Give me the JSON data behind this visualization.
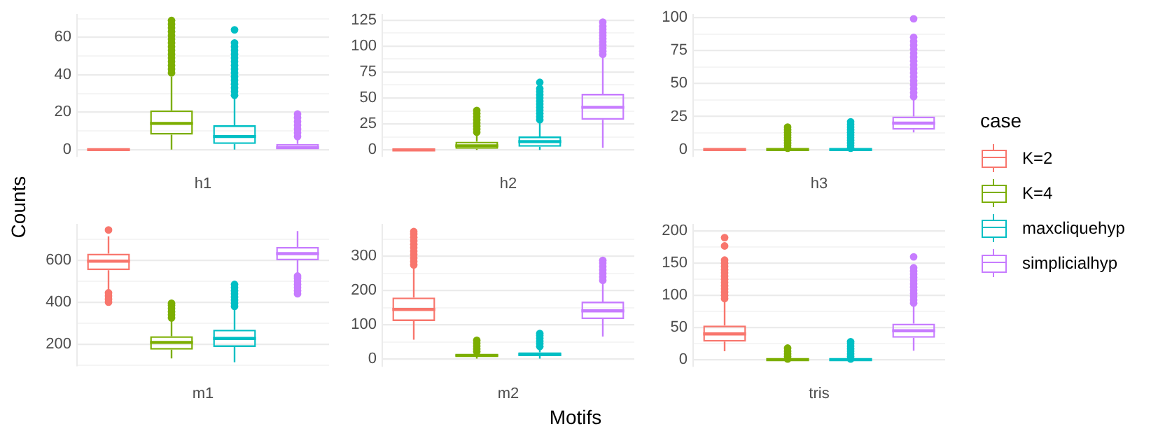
{
  "chart_data": [
    {
      "type": "box",
      "categories": [
        null,
        null,
        null,
        null
      ],
      "xlabel": "h1",
      "ylabel": "Counts",
      "legend": "right",
      "legend_title": "case",
      "grid": "y",
      "ylim": [
        -3.5,
        72
      ],
      "yticks": [
        0,
        {
          "value": 10,
          "label": null
        },
        20,
        {
          "value": 30,
          "label": null
        },
        40,
        {
          "value": 50,
          "label": null
        },
        60,
        {
          "value": 70,
          "label": null
        }
      ],
      "series": [
        {
          "name": "K=2",
          "color": "#f8766d",
          "boxes": [
            {
              "low": 0,
              "q1": 0,
              "median": 0,
              "q3": 0,
              "high": 0
            },
            null,
            null,
            null
          ]
        },
        {
          "name": "K=4",
          "color": "#7cae00",
          "boxes": [
            null,
            {
              "low": 0,
              "q1": 8,
              "median": 14,
              "q3": 21,
              "high": 39,
              "outliers": [
                41,
                43,
                45,
                47,
                49,
                51,
                53,
                55,
                57,
                59,
                61,
                63,
                65,
                67,
                69
              ]
            },
            null,
            null
          ]
        },
        {
          "name": "maxcliquehyp",
          "color": "#00bfc4",
          "boxes": [
            null,
            null,
            {
              "low": 0,
              "q1": 3,
              "median": 7,
              "q3": 13,
              "high": 28,
              "outliers": [
                29,
                31,
                33,
                35,
                37,
                39,
                41,
                43,
                45,
                47,
                49,
                51,
                53,
                55,
                57,
                64
              ]
            },
            null
          ]
        },
        {
          "name": "simplicialhyp",
          "color": "#c77cff",
          "boxes": [
            null,
            null,
            null,
            {
              "low": 0,
              "q1": 0,
              "median": 1,
              "q3": 3,
              "high": 6,
              "outliers": [
                7,
                9,
                11,
                13,
                15,
                17,
                19
              ]
            }
          ]
        }
      ]
    },
    {
      "type": "box",
      "categories": [
        null,
        null,
        null,
        null
      ],
      "xlabel": "h2",
      "grid": "y",
      "ylim": [
        -6,
        130
      ],
      "yticks": [
        0,
        {
          "value": 12.5,
          "label": null
        },
        25,
        {
          "value": 37.5,
          "label": null
        },
        50,
        {
          "value": 62.5,
          "label": null
        },
        75,
        {
          "value": 87.5,
          "label": null
        },
        100,
        {
          "value": 112.5,
          "label": null
        },
        125
      ],
      "series": [
        {
          "color": "#f8766d",
          "boxes": [
            {
              "low": 0,
              "q1": 0,
              "median": 0,
              "q3": 0,
              "high": 0
            },
            null,
            null,
            null
          ]
        },
        {
          "color": "#7cae00",
          "boxes": [
            null,
            {
              "low": 0,
              "q1": 1,
              "median": 4,
              "q3": 8,
              "high": 16,
              "outliers": [
                17,
                20,
                23,
                26,
                29,
                32,
                35,
                38
              ]
            },
            null,
            null
          ]
        },
        {
          "color": "#00bfc4",
          "boxes": [
            null,
            null,
            {
              "low": 0,
              "q1": 3,
              "median": 8,
              "q3": 13,
              "high": 27,
              "outliers": [
                29,
                32,
                35,
                38,
                41,
                44,
                47,
                50,
                53,
                56,
                59,
                65
              ]
            },
            null
          ]
        },
        {
          "color": "#c77cff",
          "boxes": [
            null,
            null,
            null,
            {
              "low": 2,
              "q1": 29,
              "median": 41,
              "q3": 54,
              "high": 90,
              "outliers": [
                92,
                95,
                98,
                101,
                104,
                107,
                110,
                113,
                116,
                119,
                123
              ]
            }
          ]
        }
      ]
    },
    {
      "type": "box",
      "categories": [
        null,
        null,
        null,
        null
      ],
      "xlabel": "h3",
      "grid": "y",
      "ylim": [
        -5,
        102
      ],
      "yticks": [
        0,
        {
          "value": 12.5,
          "label": null
        },
        25,
        {
          "value": 37.5,
          "label": null
        },
        50,
        {
          "value": 62.5,
          "label": null
        },
        75,
        {
          "value": 87.5,
          "label": null
        },
        100
      ],
      "series": [
        {
          "color": "#f8766d",
          "boxes": [
            {
              "low": 0,
              "q1": 0,
              "median": 0,
              "q3": 0,
              "high": 0
            },
            null,
            null,
            null
          ]
        },
        {
          "color": "#7cae00",
          "boxes": [
            null,
            {
              "low": 0,
              "q1": 0,
              "median": 0,
              "q3": 0,
              "high": 0,
              "outliers": [
                1,
                3,
                5,
                7,
                9,
                11,
                13,
                15,
                17
              ]
            },
            null,
            null
          ]
        },
        {
          "color": "#00bfc4",
          "boxes": [
            null,
            null,
            {
              "low": 0,
              "q1": 0,
              "median": 0,
              "q3": 0,
              "high": 0,
              "outliers": [
                1,
                3,
                5,
                7,
                9,
                11,
                13,
                15,
                17,
                19,
                21
              ]
            },
            null
          ]
        },
        {
          "color": "#c77cff",
          "boxes": [
            null,
            null,
            null,
            {
              "low": 13,
              "q1": 15,
              "median": 20,
              "q3": 25,
              "high": 38,
              "outliers": [
                40,
                43,
                46,
                49,
                52,
                55,
                58,
                61,
                64,
                67,
                70,
                73,
                76,
                79,
                82,
                85,
                99
              ]
            }
          ]
        }
      ]
    },
    {
      "type": "box",
      "categories": [
        null,
        null,
        null,
        null
      ],
      "xlabel": "m1",
      "grid": "y",
      "ylim": [
        95,
        770
      ],
      "yticks": [
        {
          "value": 100,
          "label": null
        },
        200,
        {
          "value": 300,
          "label": null
        },
        400,
        {
          "value": 500,
          "label": null
        },
        600,
        {
          "value": 700,
          "label": null
        }
      ],
      "series": [
        {
          "color": "#f8766d",
          "boxes": [
            {
              "low": 456,
              "q1": 553,
              "median": 596,
              "q3": 632,
              "high": 715,
              "outliers": [
                400,
                415,
                430,
                445,
                745
              ]
            },
            null,
            null,
            null
          ]
        },
        {
          "color": "#7cae00",
          "boxes": [
            null,
            {
              "low": 132,
              "q1": 173,
              "median": 208,
              "q3": 238,
              "high": 315,
              "outliers": [
                325,
                340,
                355,
                370,
                385,
                395
              ]
            },
            null,
            null
          ]
        },
        {
          "color": "#00bfc4",
          "boxes": [
            null,
            null,
            {
              "low": 113,
              "q1": 186,
              "median": 227,
              "q3": 269,
              "high": 370,
              "outliers": [
                380,
                395,
                410,
                425,
                440,
                455,
                470,
                485
              ]
            },
            null
          ]
        },
        {
          "color": "#c77cff",
          "boxes": [
            null,
            null,
            null,
            {
              "low": 535,
              "q1": 600,
              "median": 632,
              "q3": 664,
              "high": 740,
              "outliers": [
                440,
                455,
                470,
                485,
                500,
                515,
                525
              ]
            }
          ]
        }
      ]
    },
    {
      "type": "box",
      "categories": [
        null,
        null,
        null,
        null
      ],
      "xlabel": "m2",
      "annotations": [
        "Motifs"
      ],
      "grid": "y",
      "ylim": [
        -20,
        392
      ],
      "yticks": [
        0,
        {
          "value": 50,
          "label": null
        },
        100,
        {
          "value": 150,
          "label": null
        },
        200,
        {
          "value": 250,
          "label": null
        },
        300,
        {
          "value": 350,
          "label": null
        }
      ],
      "series": [
        {
          "color": "#f8766d",
          "boxes": [
            {
              "low": 57,
              "q1": 111,
              "median": 145,
              "q3": 180,
              "high": 270,
              "outliers": [
                275,
                285,
                295,
                305,
                315,
                325,
                335,
                345,
                355,
                365,
                372
              ]
            },
            null,
            null,
            null
          ]
        },
        {
          "color": "#7cae00",
          "boxes": [
            null,
            {
              "low": 2,
              "q1": 8,
              "median": 11,
              "q3": 14,
              "high": 20,
              "outliers": [
                22,
                30,
                38,
                46,
                55
              ]
            },
            null,
            null
          ]
        },
        {
          "color": "#00bfc4",
          "boxes": [
            null,
            null,
            {
              "low": 2,
              "q1": 9,
              "median": 14,
              "q3": 20,
              "high": 35,
              "outliers": [
                37,
                45,
                53,
                61,
                69,
                75
              ]
            },
            null
          ]
        },
        {
          "color": "#c77cff",
          "boxes": [
            null,
            null,
            null,
            {
              "low": 66,
              "q1": 117,
              "median": 141,
              "q3": 168,
              "high": 226,
              "outliers": [
                230,
                240,
                250,
                260,
                270,
                280,
                288
              ]
            }
          ]
        }
      ]
    },
    {
      "type": "box",
      "categories": [
        null,
        null,
        null,
        null
      ],
      "xlabel": "tris",
      "grid": "y",
      "ylim": [
        -10,
        210
      ],
      "yticks": [
        0,
        {
          "value": 25,
          "label": null
        },
        50,
        {
          "value": 75,
          "label": null
        },
        100,
        {
          "value": 125,
          "label": null
        },
        150,
        {
          "value": 175,
          "label": null
        },
        200
      ],
      "series": [
        {
          "color": "#f8766d",
          "boxes": [
            {
              "low": 13,
              "q1": 28,
              "median": 40,
              "q3": 53,
              "high": 92,
              "outliers": [
                95,
                100,
                105,
                110,
                115,
                120,
                125,
                130,
                135,
                140,
                145,
                150,
                155,
                177,
                190
              ]
            },
            null,
            null,
            null
          ]
        },
        {
          "color": "#7cae00",
          "boxes": [
            null,
            {
              "low": 0,
              "q1": 0,
              "median": 0,
              "q3": 0,
              "high": 0,
              "outliers": [
                1,
                5,
                9,
                13,
                18
              ]
            },
            null,
            null
          ]
        },
        {
          "color": "#00bfc4",
          "boxes": [
            null,
            null,
            {
              "low": 0,
              "q1": 0,
              "median": 0,
              "q3": 0,
              "high": 0,
              "outliers": [
                1,
                5,
                9,
                13,
                17,
                21,
                25,
                28
              ]
            },
            null
          ]
        },
        {
          "color": "#c77cff",
          "boxes": [
            null,
            null,
            null,
            {
              "low": 14,
              "q1": 34,
              "median": 45,
              "q3": 56,
              "high": 85,
              "outliers": [
                88,
                93,
                98,
                103,
                108,
                113,
                118,
                123,
                128,
                133,
                138,
                143,
                160
              ]
            }
          ]
        }
      ]
    }
  ]
}
